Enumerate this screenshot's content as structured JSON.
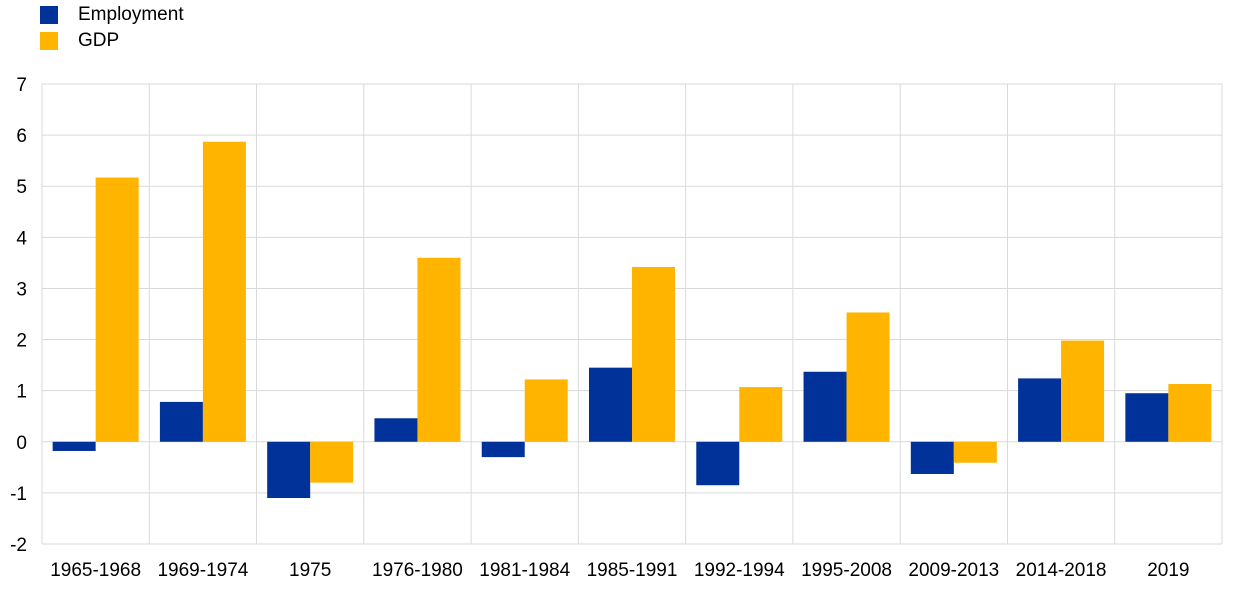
{
  "chart_data": {
    "type": "bar",
    "categories": [
      "1965-1968",
      "1969-1974",
      "1975",
      "1976-1980",
      "1981-1984",
      "1985-1991",
      "1992-1994",
      "1995-2008",
      "2009-2013",
      "2014-2018",
      "2019"
    ],
    "series": [
      {
        "name": "Employment",
        "color": "#003299",
        "values": [
          -0.18,
          0.78,
          -1.1,
          0.46,
          -0.3,
          1.45,
          -0.85,
          1.37,
          -0.63,
          1.24,
          0.95
        ]
      },
      {
        "name": "GDP",
        "color": "#FFB400",
        "values": [
          5.17,
          5.87,
          -0.8,
          3.6,
          1.22,
          3.42,
          1.07,
          2.53,
          -0.41,
          1.98,
          1.13
        ]
      }
    ],
    "ylim": [
      -2,
      7
    ],
    "yticks": [
      -2,
      -1,
      0,
      1,
      2,
      3,
      4,
      5,
      6,
      7
    ],
    "grid": true,
    "legend_position": "top-left",
    "title": "",
    "xlabel": "",
    "ylabel": ""
  }
}
